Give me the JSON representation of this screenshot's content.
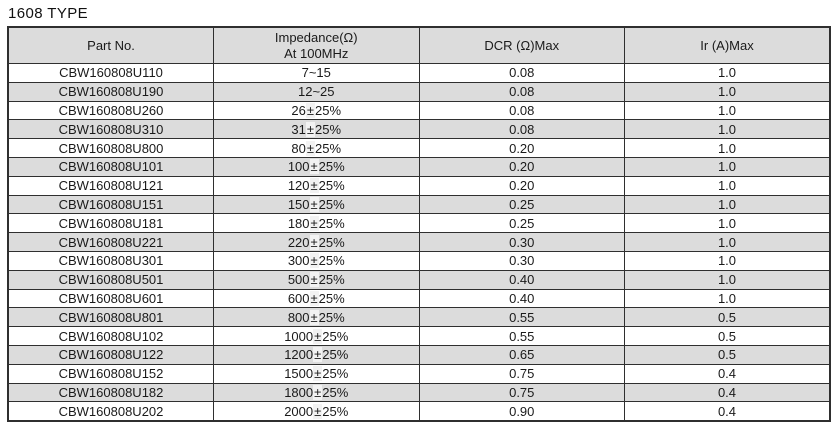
{
  "title": "1608 TYPE",
  "colors": {
    "header_bg": "#dcdcdc",
    "row_alt_bg": "#dcdcdc",
    "border": "#2f2f2f",
    "text": "#1a1a1a"
  },
  "table": {
    "header": {
      "part_no": "Part No.",
      "impedance_line1": "Impedance(Ω)",
      "impedance_line2": "At 100MHz",
      "dcr": "DCR (Ω)Max",
      "ir": "Ir (A)Max"
    },
    "rows": [
      {
        "part_no": "CBW160808U110",
        "impedance": "7~15",
        "dcr": "0.08",
        "ir": "1.0"
      },
      {
        "part_no": "CBW160808U190",
        "impedance": "12~25",
        "dcr": "0.08",
        "ir": "1.0"
      },
      {
        "part_no": "CBW160808U260",
        "impedance": "26±25%",
        "dcr": "0.08",
        "ir": "1.0"
      },
      {
        "part_no": "CBW160808U310",
        "impedance": "31±25%",
        "dcr": "0.08",
        "ir": "1.0"
      },
      {
        "part_no": "CBW160808U800",
        "impedance": "80±25%",
        "dcr": "0.20",
        "ir": "1.0"
      },
      {
        "part_no": "CBW160808U101",
        "impedance": "100±25%",
        "dcr": "0.20",
        "ir": "1.0"
      },
      {
        "part_no": "CBW160808U121",
        "impedance": "120±25%",
        "dcr": "0.20",
        "ir": "1.0"
      },
      {
        "part_no": "CBW160808U151",
        "impedance": "150±25%",
        "dcr": "0.25",
        "ir": "1.0"
      },
      {
        "part_no": "CBW160808U181",
        "impedance": "180±25%",
        "dcr": "0.25",
        "ir": "1.0"
      },
      {
        "part_no": "CBW160808U221",
        "impedance": "220±25%",
        "dcr": "0.30",
        "ir": "1.0"
      },
      {
        "part_no": "CBW160808U301",
        "impedance": "300±25%",
        "dcr": "0.30",
        "ir": "1.0"
      },
      {
        "part_no": "CBW160808U501",
        "impedance": "500±25%",
        "dcr": "0.40",
        "ir": "1.0"
      },
      {
        "part_no": "CBW160808U601",
        "impedance": "600±25%",
        "dcr": "0.40",
        "ir": "1.0"
      },
      {
        "part_no": "CBW160808U801",
        "impedance": "800±25%",
        "dcr": "0.55",
        "ir": "0.5"
      },
      {
        "part_no": "CBW160808U102",
        "impedance": "1000±25%",
        "dcr": "0.55",
        "ir": "0.5"
      },
      {
        "part_no": "CBW160808U122",
        "impedance": "1200±25%",
        "dcr": "0.65",
        "ir": "0.5"
      },
      {
        "part_no": "CBW160808U152",
        "impedance": "1500±25%",
        "dcr": "0.75",
        "ir": "0.4"
      },
      {
        "part_no": "CBW160808U182",
        "impedance": "1800±25%",
        "dcr": "0.75",
        "ir": "0.4"
      },
      {
        "part_no": "CBW160808U202",
        "impedance": "2000±25%",
        "dcr": "0.90",
        "ir": "0.4"
      }
    ]
  }
}
